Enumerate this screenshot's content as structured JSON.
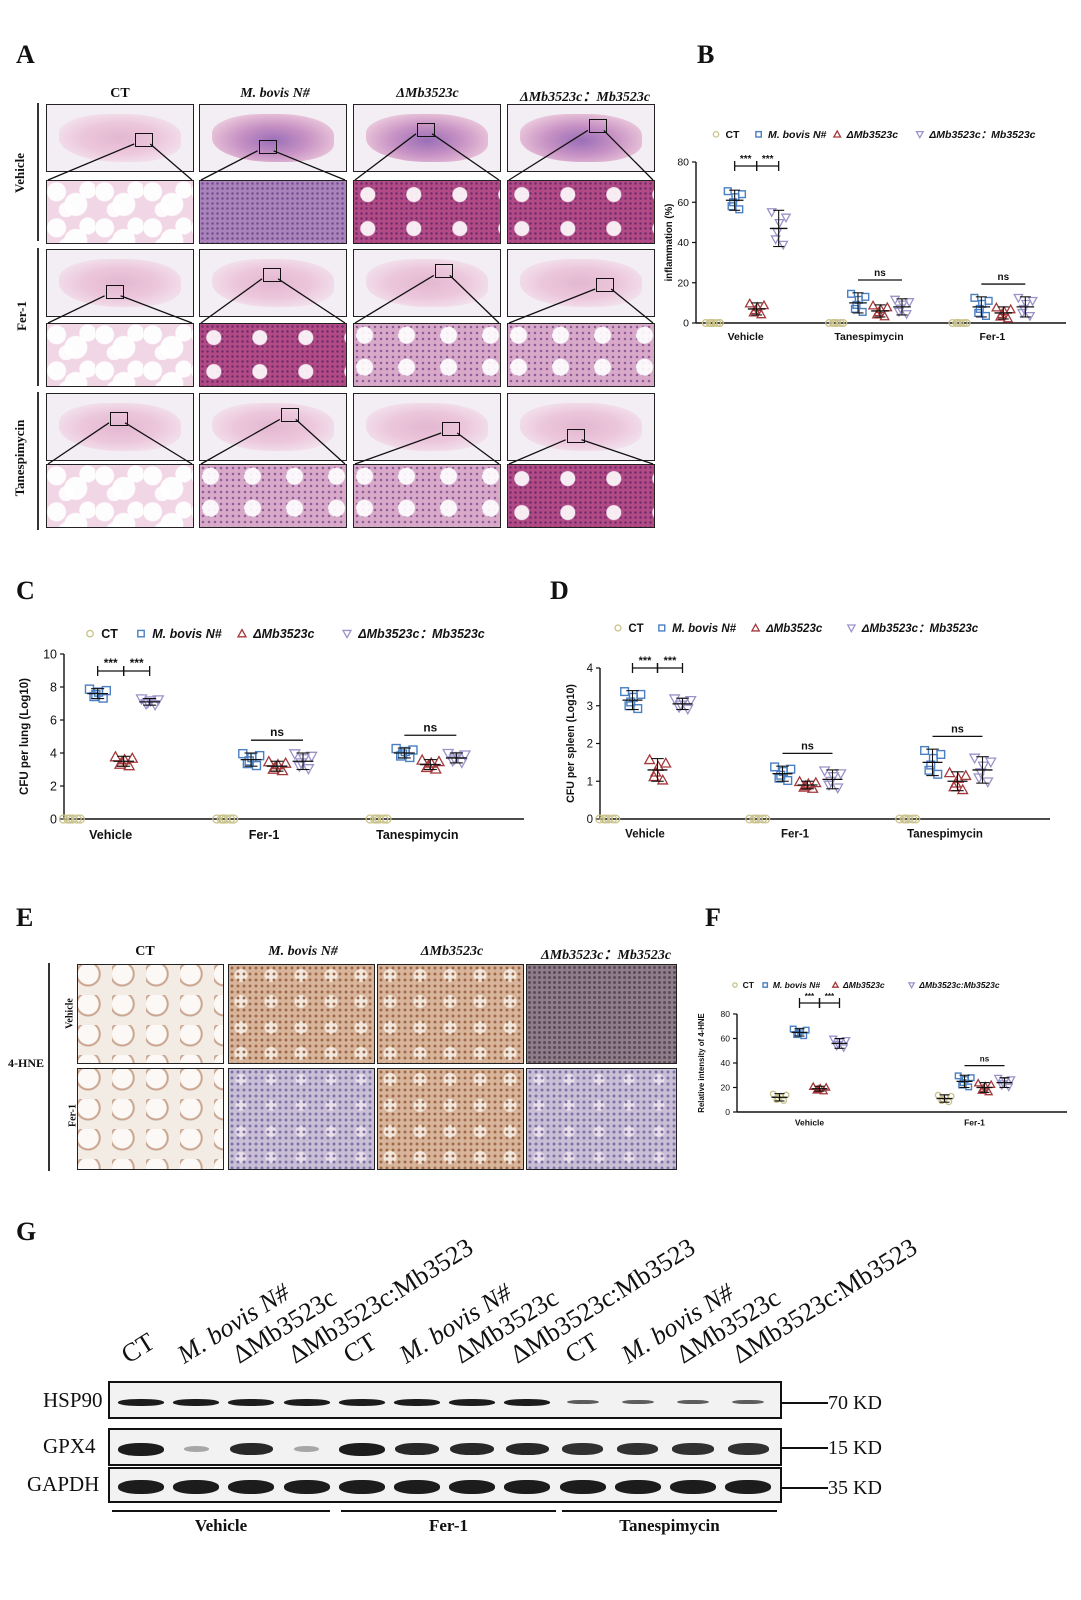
{
  "panels": {
    "A": {
      "label": "A",
      "columns": [
        "CT",
        "M. bovis N#",
        "ΔMb3523c",
        "ΔMb3523c：Mb3523c"
      ],
      "rows": [
        "Vehicle",
        "Fer-1",
        "Tanespimycin"
      ]
    },
    "B": {
      "label": "B"
    },
    "C": {
      "label": "C"
    },
    "D": {
      "label": "D"
    },
    "E": {
      "label": "E",
      "columns": [
        "CT",
        "M. bovis N#",
        "ΔMb3523c",
        "ΔMb3523c：Mb3523c"
      ],
      "rows": [
        "Vehicle",
        "Fer-1"
      ],
      "side_label": "4-HNE"
    },
    "F": {
      "label": "F"
    },
    "G": {
      "label": "G",
      "lanes": [
        "CT",
        "M. bovis N#",
        "ΔMb3523c",
        "ΔMb3523c:Mb3523",
        "CT",
        "M. bovis N#",
        "ΔMb3523c",
        "ΔMb3523c:Mb3523",
        "CT",
        "M. bovis N#",
        "ΔMb3523c",
        "ΔMb3523c:Mb3523"
      ],
      "proteins": [
        "HSP90",
        "GPX4",
        "GAPDH"
      ],
      "kd": [
        "70 KD",
        "15 KD",
        "35 KD"
      ],
      "groups": [
        "Vehicle",
        "Fer-1",
        "Tanespimycin"
      ],
      "gpx4_relative": [
        1.0,
        0.35,
        0.95,
        0.3,
        1.0,
        0.95,
        0.95,
        0.95,
        0.9,
        0.9,
        0.9,
        0.9
      ]
    }
  },
  "legend_labels": [
    "CT",
    "M. bovis N#",
    "ΔMb3523c",
    "ΔMb3523c：Mb3523c"
  ],
  "legend_labels_F": [
    "CT",
    "M. bovis N#",
    "ΔMb3523c",
    "ΔMb3523c:Mb3523c"
  ],
  "series_colors": [
    "#c9c28a",
    "#4a7fc1",
    "#a4373a",
    "#9a93c9"
  ],
  "chart_data": [
    {
      "id": "B",
      "type": "scatter",
      "ylabel": "inflammation (%)",
      "ylim": [
        0,
        80
      ],
      "yticks": [
        0,
        20,
        40,
        60,
        80
      ],
      "categories": [
        "Vehicle",
        "Tanespimycin",
        "Fer-1"
      ],
      "series": [
        {
          "name": "CT",
          "means": [
            0,
            0,
            0
          ],
          "sd": [
            0,
            0,
            0
          ]
        },
        {
          "name": "M. bovis N#",
          "means": [
            61,
            10,
            8
          ],
          "sd": [
            5,
            5,
            5
          ]
        },
        {
          "name": "ΔMb3523c",
          "means": [
            7,
            6,
            5
          ],
          "sd": [
            3,
            3,
            3
          ]
        },
        {
          "name": "ΔMb3523c：Mb3523c",
          "means": [
            47,
            8,
            8
          ],
          "sd": [
            9,
            4,
            5
          ]
        }
      ],
      "annotations": [
        {
          "text": "***",
          "group": 0,
          "from": 1,
          "to": 2
        },
        {
          "text": "***",
          "group": 0,
          "from": 2,
          "to": 3
        },
        {
          "text": "ns",
          "group": 1,
          "from": 1,
          "to": 3
        },
        {
          "text": "ns",
          "group": 2,
          "from": 1,
          "to": 3
        }
      ]
    },
    {
      "id": "C",
      "type": "scatter",
      "ylabel": "CFU per lung (Log10)",
      "ylim": [
        0,
        10
      ],
      "yticks": [
        0,
        2,
        4,
        6,
        8,
        10
      ],
      "categories": [
        "Vehicle",
        "Fer-1",
        "Tanespimycin"
      ],
      "series": [
        {
          "name": "CT",
          "means": [
            0,
            0,
            0
          ],
          "sd": [
            0,
            0,
            0
          ]
        },
        {
          "name": "M. bovis N#",
          "means": [
            7.6,
            3.6,
            4.0
          ],
          "sd": [
            0.3,
            0.4,
            0.3
          ]
        },
        {
          "name": "ΔMb3523c",
          "means": [
            3.5,
            3.2,
            3.3
          ],
          "sd": [
            0.3,
            0.3,
            0.3
          ]
        },
        {
          "name": "ΔMb3523c：Mb3523c",
          "means": [
            7.1,
            3.5,
            3.7
          ],
          "sd": [
            0.2,
            0.5,
            0.3
          ]
        }
      ],
      "annotations": [
        {
          "text": "***",
          "group": 0,
          "from": 1,
          "to": 2
        },
        {
          "text": "***",
          "group": 0,
          "from": 2,
          "to": 3
        },
        {
          "text": "ns",
          "group": 1,
          "from": 1,
          "to": 3
        },
        {
          "text": "ns",
          "group": 2,
          "from": 1,
          "to": 3
        }
      ]
    },
    {
      "id": "D",
      "type": "scatter",
      "ylabel": "CFU per spleen (Log10)",
      "ylim": [
        0,
        4
      ],
      "yticks": [
        0,
        1,
        2,
        3,
        4
      ],
      "categories": [
        "Vehicle",
        "Fer-1",
        "Tanespimycin"
      ],
      "series": [
        {
          "name": "CT",
          "means": [
            0,
            0,
            0
          ],
          "sd": [
            0,
            0,
            0
          ]
        },
        {
          "name": "M. bovis N#",
          "means": [
            3.15,
            1.2,
            1.5
          ],
          "sd": [
            0.25,
            0.2,
            0.35
          ]
        },
        {
          "name": "ΔMb3523c",
          "means": [
            1.3,
            0.9,
            1.0
          ],
          "sd": [
            0.3,
            0.1,
            0.25
          ]
        },
        {
          "name": "ΔMb3523c：Mb3523c",
          "means": [
            3.05,
            1.05,
            1.3
          ],
          "sd": [
            0.15,
            0.25,
            0.35
          ]
        }
      ],
      "annotations": [
        {
          "text": "***",
          "group": 0,
          "from": 1,
          "to": 2
        },
        {
          "text": "***",
          "group": 0,
          "from": 2,
          "to": 3
        },
        {
          "text": "ns",
          "group": 1,
          "from": 1,
          "to": 3
        },
        {
          "text": "ns",
          "group": 2,
          "from": 1,
          "to": 3
        }
      ]
    },
    {
      "id": "F",
      "type": "scatter",
      "ylabel": "Relative intensity of 4-HNE",
      "ylim": [
        0,
        80
      ],
      "yticks": [
        0,
        20,
        40,
        60,
        80
      ],
      "categories": [
        "Vehicle",
        "Fer-1"
      ],
      "series": [
        {
          "name": "CT",
          "means": [
            12,
            11
          ],
          "sd": [
            3,
            3
          ]
        },
        {
          "name": "M. bovis N#",
          "means": [
            65,
            25
          ],
          "sd": [
            3,
            5
          ]
        },
        {
          "name": "ΔMb3523c",
          "means": [
            19,
            20
          ],
          "sd": [
            2,
            4
          ]
        },
        {
          "name": "ΔMb3523c:Mb3523c",
          "means": [
            56,
            24
          ],
          "sd": [
            4,
            4
          ]
        }
      ],
      "annotations": [
        {
          "text": "***",
          "group": 0,
          "from": 1,
          "to": 2
        },
        {
          "text": "***",
          "group": 0,
          "from": 2,
          "to": 3
        },
        {
          "text": "ns",
          "group": 1,
          "from": 1,
          "to": 3
        }
      ]
    }
  ]
}
